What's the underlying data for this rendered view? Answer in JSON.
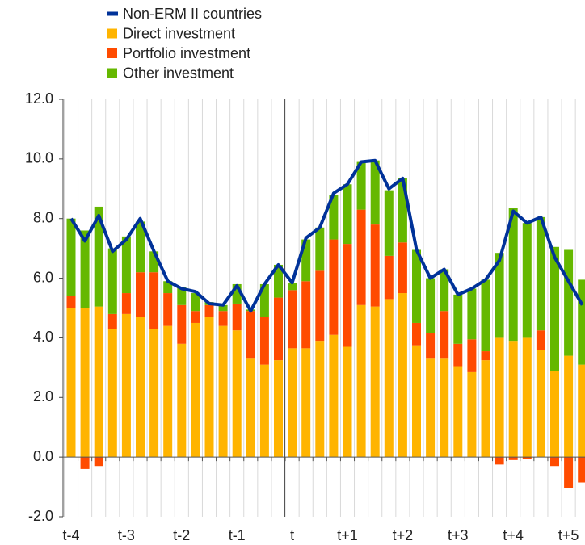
{
  "chart_data": {
    "type": "bar",
    "stacked": true,
    "categories": [
      "t-4",
      null,
      null,
      null,
      "t-3",
      null,
      null,
      null,
      "t-2",
      null,
      null,
      null,
      "t-1",
      null,
      null,
      null,
      "t",
      null,
      null,
      null,
      "t+1",
      null,
      null,
      null,
      "t+2",
      null,
      null,
      null,
      "t+3",
      null,
      null,
      null,
      "t+4",
      null,
      null,
      null,
      "t+5",
      null
    ],
    "series": [
      {
        "name": "Non-ERM II countries",
        "type": "line",
        "color": "#003299",
        "values": [
          8.0,
          7.25,
          8.1,
          6.9,
          7.3,
          8.0,
          6.9,
          5.9,
          5.65,
          5.55,
          5.15,
          5.1,
          5.75,
          4.9,
          5.8,
          6.45,
          5.85,
          7.35,
          7.7,
          8.85,
          9.15,
          9.9,
          9.95,
          9.0,
          9.35,
          6.95,
          6.0,
          6.3,
          5.45,
          5.65,
          5.95,
          6.6,
          8.25,
          7.85,
          8.05,
          6.7,
          5.9,
          5.1
        ]
      },
      {
        "name": "Direct investment",
        "type": "bar",
        "color": "#ffb400",
        "values": [
          5.0,
          5.0,
          5.05,
          4.3,
          4.8,
          4.7,
          4.3,
          4.4,
          3.8,
          4.5,
          4.7,
          4.4,
          4.25,
          3.3,
          3.1,
          3.25,
          3.65,
          3.65,
          3.9,
          4.1,
          3.7,
          5.1,
          5.05,
          5.3,
          5.5,
          3.75,
          3.3,
          3.3,
          3.05,
          2.85,
          3.25,
          4.0,
          3.9,
          4.0,
          3.6,
          2.9,
          3.4,
          3.1
        ]
      },
      {
        "name": "Portfolio investment",
        "type": "bar",
        "color": "#ff4b00",
        "values": [
          0.4,
          -0.4,
          -0.3,
          0.5,
          0.7,
          1.5,
          1.9,
          1.1,
          1.3,
          0.4,
          0.4,
          0.5,
          0.9,
          1.6,
          1.6,
          2.1,
          1.95,
          2.25,
          2.35,
          3.2,
          3.45,
          3.2,
          2.75,
          1.45,
          1.7,
          0.75,
          0.85,
          1.6,
          0.75,
          1.1,
          0.3,
          -0.25,
          -0.1,
          -0.05,
          0.65,
          -0.3,
          -1.05,
          -0.85
        ]
      },
      {
        "name": "Other investment",
        "type": "bar",
        "color": "#65b800",
        "values": [
          2.6,
          2.6,
          3.35,
          2.2,
          1.9,
          1.7,
          0.7,
          0.4,
          0.6,
          0.6,
          0.1,
          0.2,
          0.65,
          0.05,
          1.1,
          1.1,
          0.25,
          1.4,
          1.45,
          1.5,
          2.0,
          1.6,
          2.15,
          2.2,
          2.15,
          2.45,
          1.85,
          1.4,
          1.65,
          1.7,
          2.4,
          2.85,
          4.45,
          3.85,
          3.8,
          4.15,
          3.55,
          2.85
        ]
      }
    ],
    "ylim": [
      -2,
      12
    ],
    "yticks": [
      {
        "value": -2,
        "label": "-2.0"
      },
      {
        "value": 0,
        "label": "0.0"
      },
      {
        "value": 2,
        "label": "2.0"
      },
      {
        "value": 4,
        "label": "4.0"
      },
      {
        "value": 6,
        "label": "6.0"
      },
      {
        "value": 8,
        "label": "8.0"
      },
      {
        "value": 10,
        "label": "10.0"
      },
      {
        "value": 12,
        "label": "12.0"
      }
    ]
  }
}
